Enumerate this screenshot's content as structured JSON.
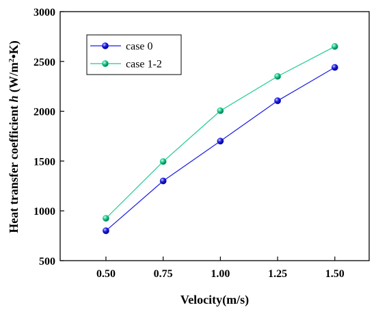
{
  "chart_data": {
    "type": "line",
    "xlabel": "Velocity(m/s)",
    "ylabel_parts": {
      "prefix": "Heat transfer coefficient ",
      "var": "h",
      "unit_open": " (W/m",
      "unit_sup": "2",
      "unit_close": "•K)"
    },
    "x": [
      0.5,
      0.75,
      1.0,
      1.25,
      1.5
    ],
    "x_tick_labels": [
      "0.50",
      "0.75",
      "1.00",
      "1.25",
      "1.50"
    ],
    "y_tick_values": [
      500,
      1000,
      1500,
      2000,
      2500,
      3000
    ],
    "y_tick_labels": [
      "500",
      "1000",
      "1500",
      "2000",
      "2500",
      "3000"
    ],
    "xlim": [
      0.3,
      1.65
    ],
    "ylim": [
      500,
      3000
    ],
    "grid": false,
    "legend_position": "top-left",
    "series": [
      {
        "name": "case 0",
        "values": [
          800,
          1300,
          1700,
          2105,
          2440
        ],
        "color": "#1a1ae6",
        "marker": "sphere-blue"
      },
      {
        "name": "case 1-2",
        "values": [
          925,
          1495,
          2005,
          2350,
          2650
        ],
        "color": "#1fcc8a",
        "marker": "sphere-green"
      }
    ]
  }
}
